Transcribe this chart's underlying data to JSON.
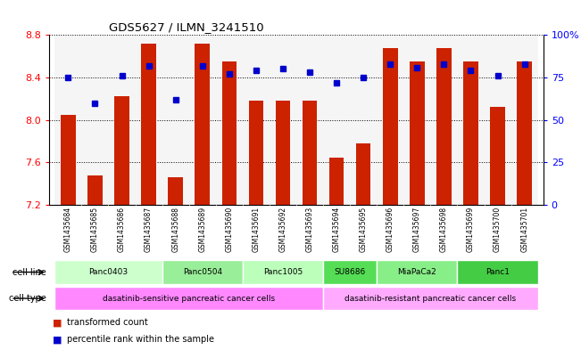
{
  "title": "GDS5627 / ILMN_3241510",
  "samples": [
    "GSM1435684",
    "GSM1435685",
    "GSM1435686",
    "GSM1435687",
    "GSM1435688",
    "GSM1435689",
    "GSM1435690",
    "GSM1435691",
    "GSM1435692",
    "GSM1435693",
    "GSM1435694",
    "GSM1435695",
    "GSM1435696",
    "GSM1435697",
    "GSM1435698",
    "GSM1435699",
    "GSM1435700",
    "GSM1435701"
  ],
  "bar_values": [
    8.05,
    7.48,
    8.22,
    8.72,
    7.46,
    8.72,
    8.55,
    8.18,
    8.18,
    8.18,
    7.64,
    7.78,
    8.68,
    8.55,
    8.68,
    8.55,
    8.12,
    8.55
  ],
  "percentile_values": [
    75,
    60,
    76,
    82,
    62,
    82,
    77,
    79,
    80,
    78,
    72,
    75,
    83,
    81,
    83,
    79,
    76,
    83
  ],
  "ylim_left": [
    7.2,
    8.8
  ],
  "ylim_right": [
    0,
    100
  ],
  "yticks_left": [
    7.2,
    7.6,
    8.0,
    8.4,
    8.8
  ],
  "yticks_right": [
    0,
    25,
    50,
    75,
    100
  ],
  "bar_color": "#cc2200",
  "dot_color": "#0000cc",
  "cell_line_info": [
    {
      "label": "Panc0403",
      "indices": [
        0,
        3
      ],
      "color": "#ccffcc"
    },
    {
      "label": "Panc0504",
      "indices": [
        4,
        6
      ],
      "color": "#99ee99"
    },
    {
      "label": "Panc1005",
      "indices": [
        7,
        9
      ],
      "color": "#bbffbb"
    },
    {
      "label": "SU8686",
      "indices": [
        10,
        11
      ],
      "color": "#55dd55"
    },
    {
      "label": "MiaPaCa2",
      "indices": [
        12,
        14
      ],
      "color": "#88ee88"
    },
    {
      "label": "Panc1",
      "indices": [
        15,
        17
      ],
      "color": "#44cc44"
    }
  ],
  "cell_type_info": [
    {
      "label": "dasatinib-sensitive pancreatic cancer cells",
      "indices": [
        0,
        9
      ],
      "color": "#ff88ff"
    },
    {
      "label": "dasatinib-resistant pancreatic cancer cells",
      "indices": [
        10,
        17
      ],
      "color": "#ffaaff"
    }
  ],
  "legend_items": [
    {
      "label": "transformed count",
      "color": "#cc2200"
    },
    {
      "label": "percentile rank within the sample",
      "color": "#0000cc"
    }
  ]
}
